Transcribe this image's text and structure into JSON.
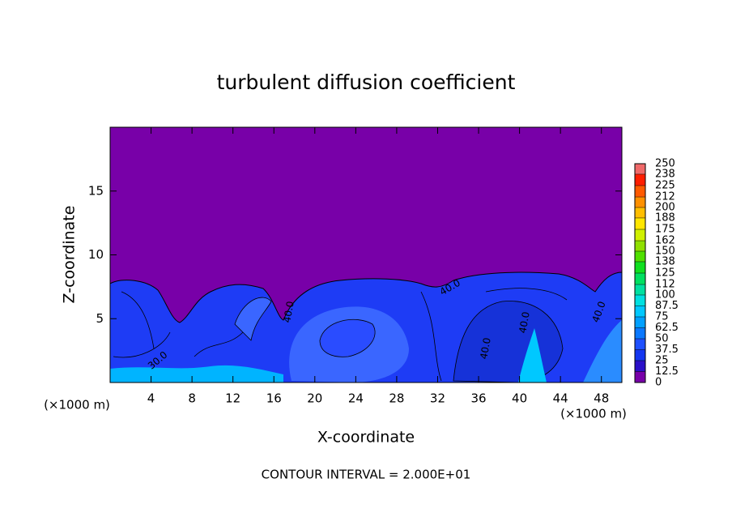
{
  "chart_data": {
    "type": "contour",
    "title": "turbulent diffusion coefficient",
    "x_label": "X-coordinate",
    "y_label": "Z-coordinate",
    "x_unit": "(×1000 m)",
    "y_unit": "(×1000 m)",
    "footer": "CONTOUR INTERVAL = 2.000E+01",
    "xlim": [
      0,
      50
    ],
    "ylim": [
      0,
      20
    ],
    "xticks": [
      4,
      8,
      12,
      16,
      20,
      24,
      28,
      32,
      36,
      40,
      44,
      48
    ],
    "yticks": [
      5,
      10,
      15
    ],
    "colorbar": {
      "levels": [
        0,
        12.5,
        25,
        37.5,
        50,
        62.5,
        75,
        87.5,
        100,
        112,
        125,
        138,
        150,
        162,
        175,
        188,
        200,
        212,
        225,
        238,
        250
      ],
      "colors": [
        "#7800a8",
        "#2a10c8",
        "#1436f0",
        "#1e50ff",
        "#0a78ff",
        "#00a0ff",
        "#00c8ff",
        "#00e0e0",
        "#00e0a0",
        "#00e060",
        "#10e020",
        "#50e000",
        "#90e000",
        "#d0f000",
        "#ffe600",
        "#ffbe00",
        "#ff9000",
        "#ff5a00",
        "#ff1e00",
        "#f06a6a"
      ]
    },
    "contour_labels": [
      "30.0",
      "40.0",
      "40.0",
      "40.0",
      "40.0",
      "40.0"
    ]
  }
}
